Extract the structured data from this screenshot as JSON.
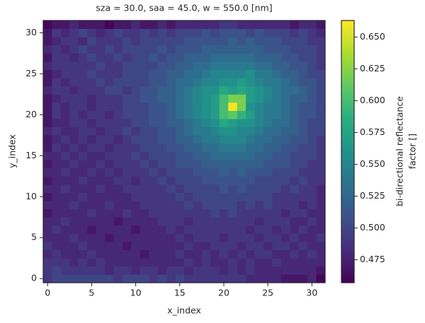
{
  "chart_data": {
    "type": "heatmap",
    "title": "sza = 30.0, saa = 45.0, w = 550.0 [nm]",
    "x_label": "x_index",
    "y_label": "y_index",
    "colorbar_label": [
      "bi-directional reflectance",
      "factor []"
    ],
    "colormap": "viridis",
    "x": [
      0,
      1,
      2,
      3,
      4,
      5,
      6,
      7,
      8,
      9,
      10,
      11,
      12,
      13,
      14,
      15,
      16,
      17,
      18,
      19,
      20,
      21,
      22,
      23,
      24,
      25,
      26,
      27,
      28,
      29,
      30,
      31
    ],
    "y": [
      0,
      1,
      2,
      3,
      4,
      5,
      6,
      7,
      8,
      9,
      10,
      11,
      12,
      13,
      14,
      15,
      16,
      17,
      18,
      19,
      20,
      21,
      22,
      23,
      24,
      25,
      26,
      27,
      28,
      29,
      30,
      31
    ],
    "xlim": [
      -0.5,
      31.5
    ],
    "ylim": [
      -0.5,
      31.5
    ],
    "xticks": [
      0,
      5,
      10,
      15,
      20,
      25,
      30
    ],
    "yticks": [
      0,
      5,
      10,
      15,
      20,
      25,
      30
    ],
    "clim": [
      0.457,
      0.663
    ],
    "cticks": [
      0.475,
      {
        "value": 0.5,
        "label": "0.500"
      },
      0.525,
      {
        "value": 0.55,
        "label": "0.550"
      },
      0.575,
      {
        "value": 0.6,
        "label": "0.600"
      },
      0.625,
      {
        "value": 0.65,
        "label": "0.650"
      }
    ],
    "z": [
      [
        0.49,
        0.5,
        0.5,
        0.5,
        0.5,
        0.5,
        0.5,
        0.5,
        0.49,
        0.5,
        0.5,
        0.5,
        0.49,
        0.5,
        0.49,
        0.5,
        0.49,
        0.49,
        0.49,
        0.49,
        0.49,
        0.49,
        0.49,
        0.48,
        0.48,
        0.48,
        0.48,
        0.47,
        0.47,
        0.47,
        0.48,
        0.46
      ],
      [
        0.49,
        0.5,
        0.49,
        0.49,
        0.49,
        0.49,
        0.49,
        0.48,
        0.49,
        0.49,
        0.48,
        0.49,
        0.49,
        0.48,
        0.49,
        0.49,
        0.48,
        0.49,
        0.49,
        0.49,
        0.48,
        0.49,
        0.48,
        0.49,
        0.48,
        0.48,
        0.48,
        0.48,
        0.48,
        0.48,
        0.48,
        0.47
      ],
      [
        0.49,
        0.49,
        0.49,
        0.48,
        0.49,
        0.48,
        0.49,
        0.48,
        0.48,
        0.48,
        0.48,
        0.48,
        0.48,
        0.48,
        0.48,
        0.48,
        0.49,
        0.48,
        0.49,
        0.48,
        0.48,
        0.49,
        0.48,
        0.49,
        0.48,
        0.48,
        0.49,
        0.48,
        0.48,
        0.48,
        0.48,
        0.48
      ],
      [
        0.48,
        0.49,
        0.48,
        0.48,
        0.48,
        0.49,
        0.48,
        0.48,
        0.48,
        0.48,
        0.48,
        0.47,
        0.48,
        0.48,
        0.48,
        0.49,
        0.48,
        0.48,
        0.49,
        0.48,
        0.49,
        0.48,
        0.49,
        0.48,
        0.49,
        0.49,
        0.48,
        0.48,
        0.49,
        0.48,
        0.49,
        0.48
      ],
      [
        0.49,
        0.48,
        0.48,
        0.48,
        0.49,
        0.48,
        0.48,
        0.48,
        0.48,
        0.47,
        0.48,
        0.48,
        0.48,
        0.48,
        0.48,
        0.48,
        0.49,
        0.48,
        0.48,
        0.49,
        0.49,
        0.49,
        0.48,
        0.49,
        0.49,
        0.48,
        0.49,
        0.49,
        0.48,
        0.49,
        0.48,
        0.48
      ],
      [
        0.48,
        0.48,
        0.48,
        0.49,
        0.48,
        0.48,
        0.48,
        0.47,
        0.48,
        0.48,
        0.48,
        0.48,
        0.48,
        0.48,
        0.48,
        0.49,
        0.48,
        0.49,
        0.49,
        0.49,
        0.48,
        0.49,
        0.49,
        0.49,
        0.48,
        0.49,
        0.49,
        0.48,
        0.49,
        0.48,
        0.48,
        0.49
      ],
      [
        0.48,
        0.49,
        0.48,
        0.48,
        0.48,
        0.47,
        0.48,
        0.48,
        0.48,
        0.48,
        0.47,
        0.48,
        0.48,
        0.48,
        0.49,
        0.48,
        0.49,
        0.49,
        0.49,
        0.49,
        0.49,
        0.49,
        0.49,
        0.48,
        0.49,
        0.49,
        0.48,
        0.49,
        0.48,
        0.49,
        0.48,
        0.48
      ],
      [
        0.48,
        0.48,
        0.49,
        0.48,
        0.48,
        0.48,
        0.48,
        0.48,
        0.47,
        0.48,
        0.48,
        0.48,
        0.48,
        0.49,
        0.49,
        0.49,
        0.48,
        0.49,
        0.49,
        0.49,
        0.49,
        0.49,
        0.49,
        0.49,
        0.48,
        0.49,
        0.49,
        0.49,
        0.48,
        0.48,
        0.49,
        0.48
      ],
      [
        0.47,
        0.48,
        0.48,
        0.48,
        0.48,
        0.49,
        0.48,
        0.48,
        0.48,
        0.49,
        0.48,
        0.48,
        0.49,
        0.49,
        0.49,
        0.49,
        0.49,
        0.49,
        0.49,
        0.5,
        0.49,
        0.5,
        0.49,
        0.49,
        0.49,
        0.49,
        0.49,
        0.48,
        0.49,
        0.49,
        0.48,
        0.48
      ],
      [
        0.48,
        0.48,
        0.48,
        0.49,
        0.48,
        0.48,
        0.48,
        0.49,
        0.48,
        0.48,
        0.48,
        0.49,
        0.49,
        0.49,
        0.49,
        0.49,
        0.5,
        0.49,
        0.5,
        0.5,
        0.5,
        0.5,
        0.49,
        0.5,
        0.49,
        0.5,
        0.49,
        0.49,
        0.49,
        0.48,
        0.49,
        0.48
      ],
      [
        0.47,
        0.48,
        0.48,
        0.48,
        0.49,
        0.48,
        0.48,
        0.48,
        0.48,
        0.48,
        0.49,
        0.49,
        0.49,
        0.49,
        0.49,
        0.5,
        0.49,
        0.5,
        0.5,
        0.5,
        0.5,
        0.5,
        0.5,
        0.5,
        0.5,
        0.5,
        0.49,
        0.49,
        0.49,
        0.49,
        0.49,
        0.48
      ],
      [
        0.48,
        0.48,
        0.49,
        0.48,
        0.48,
        0.48,
        0.49,
        0.48,
        0.48,
        0.49,
        0.49,
        0.49,
        0.49,
        0.49,
        0.5,
        0.49,
        0.5,
        0.5,
        0.5,
        0.5,
        0.51,
        0.5,
        0.51,
        0.5,
        0.5,
        0.5,
        0.5,
        0.49,
        0.5,
        0.49,
        0.49,
        0.48
      ],
      [
        0.47,
        0.48,
        0.48,
        0.48,
        0.49,
        0.48,
        0.48,
        0.48,
        0.49,
        0.49,
        0.48,
        0.49,
        0.49,
        0.5,
        0.49,
        0.5,
        0.5,
        0.5,
        0.51,
        0.51,
        0.51,
        0.51,
        0.51,
        0.51,
        0.5,
        0.5,
        0.5,
        0.5,
        0.49,
        0.5,
        0.49,
        0.49
      ],
      [
        0.48,
        0.48,
        0.49,
        0.48,
        0.48,
        0.49,
        0.48,
        0.49,
        0.48,
        0.49,
        0.49,
        0.49,
        0.5,
        0.49,
        0.5,
        0.5,
        0.5,
        0.51,
        0.51,
        0.51,
        0.52,
        0.51,
        0.52,
        0.51,
        0.51,
        0.51,
        0.5,
        0.5,
        0.5,
        0.49,
        0.49,
        0.49
      ],
      [
        0.47,
        0.48,
        0.48,
        0.49,
        0.48,
        0.48,
        0.49,
        0.48,
        0.49,
        0.49,
        0.49,
        0.5,
        0.49,
        0.5,
        0.5,
        0.51,
        0.51,
        0.51,
        0.52,
        0.52,
        0.52,
        0.52,
        0.52,
        0.52,
        0.52,
        0.51,
        0.51,
        0.51,
        0.5,
        0.5,
        0.49,
        0.49
      ],
      [
        0.48,
        0.48,
        0.49,
        0.48,
        0.49,
        0.48,
        0.48,
        0.49,
        0.49,
        0.49,
        0.5,
        0.49,
        0.5,
        0.5,
        0.5,
        0.51,
        0.51,
        0.52,
        0.52,
        0.53,
        0.53,
        0.53,
        0.53,
        0.53,
        0.52,
        0.52,
        0.51,
        0.51,
        0.5,
        0.5,
        0.5,
        0.49
      ],
      [
        0.47,
        0.49,
        0.48,
        0.49,
        0.48,
        0.49,
        0.49,
        0.48,
        0.49,
        0.49,
        0.49,
        0.5,
        0.5,
        0.5,
        0.51,
        0.51,
        0.52,
        0.52,
        0.53,
        0.53,
        0.54,
        0.54,
        0.54,
        0.53,
        0.53,
        0.52,
        0.52,
        0.51,
        0.51,
        0.5,
        0.5,
        0.49
      ],
      [
        0.47,
        0.48,
        0.49,
        0.48,
        0.49,
        0.48,
        0.49,
        0.49,
        0.48,
        0.49,
        0.5,
        0.5,
        0.5,
        0.51,
        0.51,
        0.52,
        0.52,
        0.53,
        0.54,
        0.54,
        0.55,
        0.55,
        0.55,
        0.54,
        0.53,
        0.53,
        0.52,
        0.52,
        0.51,
        0.51,
        0.5,
        0.49
      ],
      [
        0.48,
        0.49,
        0.48,
        0.48,
        0.49,
        0.49,
        0.48,
        0.49,
        0.49,
        0.5,
        0.49,
        0.5,
        0.5,
        0.51,
        0.51,
        0.52,
        0.53,
        0.54,
        0.54,
        0.55,
        0.56,
        0.56,
        0.55,
        0.55,
        0.54,
        0.53,
        0.53,
        0.52,
        0.52,
        0.51,
        0.5,
        0.5
      ],
      [
        0.47,
        0.48,
        0.48,
        0.49,
        0.49,
        0.48,
        0.49,
        0.49,
        0.49,
        0.49,
        0.5,
        0.5,
        0.51,
        0.51,
        0.52,
        0.52,
        0.53,
        0.54,
        0.55,
        0.56,
        0.58,
        0.57,
        0.56,
        0.56,
        0.55,
        0.54,
        0.53,
        0.53,
        0.52,
        0.51,
        0.5,
        0.5
      ],
      [
        0.47,
        0.49,
        0.48,
        0.49,
        0.48,
        0.49,
        0.49,
        0.48,
        0.49,
        0.5,
        0.5,
        0.5,
        0.51,
        0.51,
        0.52,
        0.53,
        0.54,
        0.55,
        0.56,
        0.57,
        0.6,
        0.61,
        0.59,
        0.57,
        0.55,
        0.54,
        0.54,
        0.53,
        0.52,
        0.51,
        0.51,
        0.5
      ],
      [
        0.47,
        0.49,
        0.48,
        0.49,
        0.49,
        0.48,
        0.49,
        0.49,
        0.49,
        0.5,
        0.5,
        0.5,
        0.51,
        0.51,
        0.52,
        0.53,
        0.54,
        0.55,
        0.56,
        0.57,
        0.6,
        0.66,
        0.62,
        0.56,
        0.55,
        0.54,
        0.54,
        0.53,
        0.52,
        0.51,
        0.51,
        0.5
      ],
      [
        0.47,
        0.48,
        0.49,
        0.49,
        0.49,
        0.48,
        0.49,
        0.49,
        0.49,
        0.5,
        0.5,
        0.51,
        0.51,
        0.52,
        0.52,
        0.53,
        0.54,
        0.55,
        0.56,
        0.57,
        0.6,
        0.62,
        0.62,
        0.57,
        0.56,
        0.55,
        0.54,
        0.53,
        0.52,
        0.52,
        0.51,
        0.5
      ],
      [
        0.48,
        0.49,
        0.49,
        0.48,
        0.49,
        0.49,
        0.49,
        0.5,
        0.5,
        0.49,
        0.5,
        0.51,
        0.51,
        0.52,
        0.52,
        0.53,
        0.54,
        0.55,
        0.56,
        0.56,
        0.58,
        0.57,
        0.58,
        0.57,
        0.56,
        0.55,
        0.54,
        0.53,
        0.53,
        0.52,
        0.51,
        0.5
      ],
      [
        0.47,
        0.49,
        0.48,
        0.49,
        0.49,
        0.49,
        0.5,
        0.49,
        0.5,
        0.5,
        0.5,
        0.5,
        0.51,
        0.51,
        0.52,
        0.53,
        0.53,
        0.54,
        0.55,
        0.55,
        0.56,
        0.56,
        0.57,
        0.56,
        0.55,
        0.54,
        0.54,
        0.53,
        0.52,
        0.51,
        0.51,
        0.5
      ],
      [
        0.47,
        0.48,
        0.49,
        0.49,
        0.49,
        0.5,
        0.49,
        0.49,
        0.49,
        0.5,
        0.5,
        0.5,
        0.51,
        0.51,
        0.52,
        0.52,
        0.53,
        0.53,
        0.54,
        0.55,
        0.55,
        0.55,
        0.55,
        0.56,
        0.54,
        0.54,
        0.53,
        0.52,
        0.52,
        0.51,
        0.5,
        0.5
      ],
      [
        0.48,
        0.49,
        0.49,
        0.49,
        0.49,
        0.49,
        0.5,
        0.49,
        0.49,
        0.5,
        0.5,
        0.5,
        0.5,
        0.51,
        0.51,
        0.52,
        0.52,
        0.53,
        0.53,
        0.54,
        0.54,
        0.54,
        0.54,
        0.54,
        0.53,
        0.53,
        0.52,
        0.52,
        0.51,
        0.51,
        0.5,
        0.49
      ],
      [
        0.47,
        0.49,
        0.49,
        0.48,
        0.49,
        0.5,
        0.49,
        0.49,
        0.5,
        0.49,
        0.5,
        0.5,
        0.51,
        0.5,
        0.51,
        0.51,
        0.52,
        0.52,
        0.52,
        0.53,
        0.53,
        0.53,
        0.53,
        0.53,
        0.52,
        0.52,
        0.52,
        0.51,
        0.51,
        0.5,
        0.5,
        0.49
      ],
      [
        0.48,
        0.49,
        0.48,
        0.49,
        0.5,
        0.49,
        0.49,
        0.5,
        0.49,
        0.5,
        0.5,
        0.5,
        0.5,
        0.51,
        0.5,
        0.51,
        0.51,
        0.51,
        0.52,
        0.52,
        0.52,
        0.52,
        0.52,
        0.52,
        0.52,
        0.51,
        0.51,
        0.51,
        0.5,
        0.5,
        0.5,
        0.49
      ],
      [
        0.47,
        0.48,
        0.49,
        0.49,
        0.48,
        0.5,
        0.49,
        0.49,
        0.49,
        0.5,
        0.49,
        0.5,
        0.5,
        0.5,
        0.5,
        0.5,
        0.51,
        0.51,
        0.51,
        0.51,
        0.51,
        0.52,
        0.51,
        0.52,
        0.51,
        0.51,
        0.51,
        0.5,
        0.5,
        0.5,
        0.49,
        0.49
      ],
      [
        0.47,
        0.49,
        0.48,
        0.49,
        0.5,
        0.49,
        0.48,
        0.49,
        0.5,
        0.49,
        0.49,
        0.5,
        0.49,
        0.5,
        0.49,
        0.5,
        0.5,
        0.5,
        0.51,
        0.5,
        0.51,
        0.51,
        0.51,
        0.5,
        0.51,
        0.5,
        0.5,
        0.5,
        0.49,
        0.5,
        0.49,
        0.48
      ],
      [
        0.46,
        0.47,
        0.47,
        0.48,
        0.47,
        0.47,
        0.47,
        0.46,
        0.47,
        0.47,
        0.48,
        0.47,
        0.47,
        0.48,
        0.47,
        0.48,
        0.48,
        0.48,
        0.48,
        0.48,
        0.49,
        0.49,
        0.48,
        0.48,
        0.48,
        0.48,
        0.48,
        0.48,
        0.47,
        0.48,
        0.48,
        0.47
      ]
    ]
  }
}
